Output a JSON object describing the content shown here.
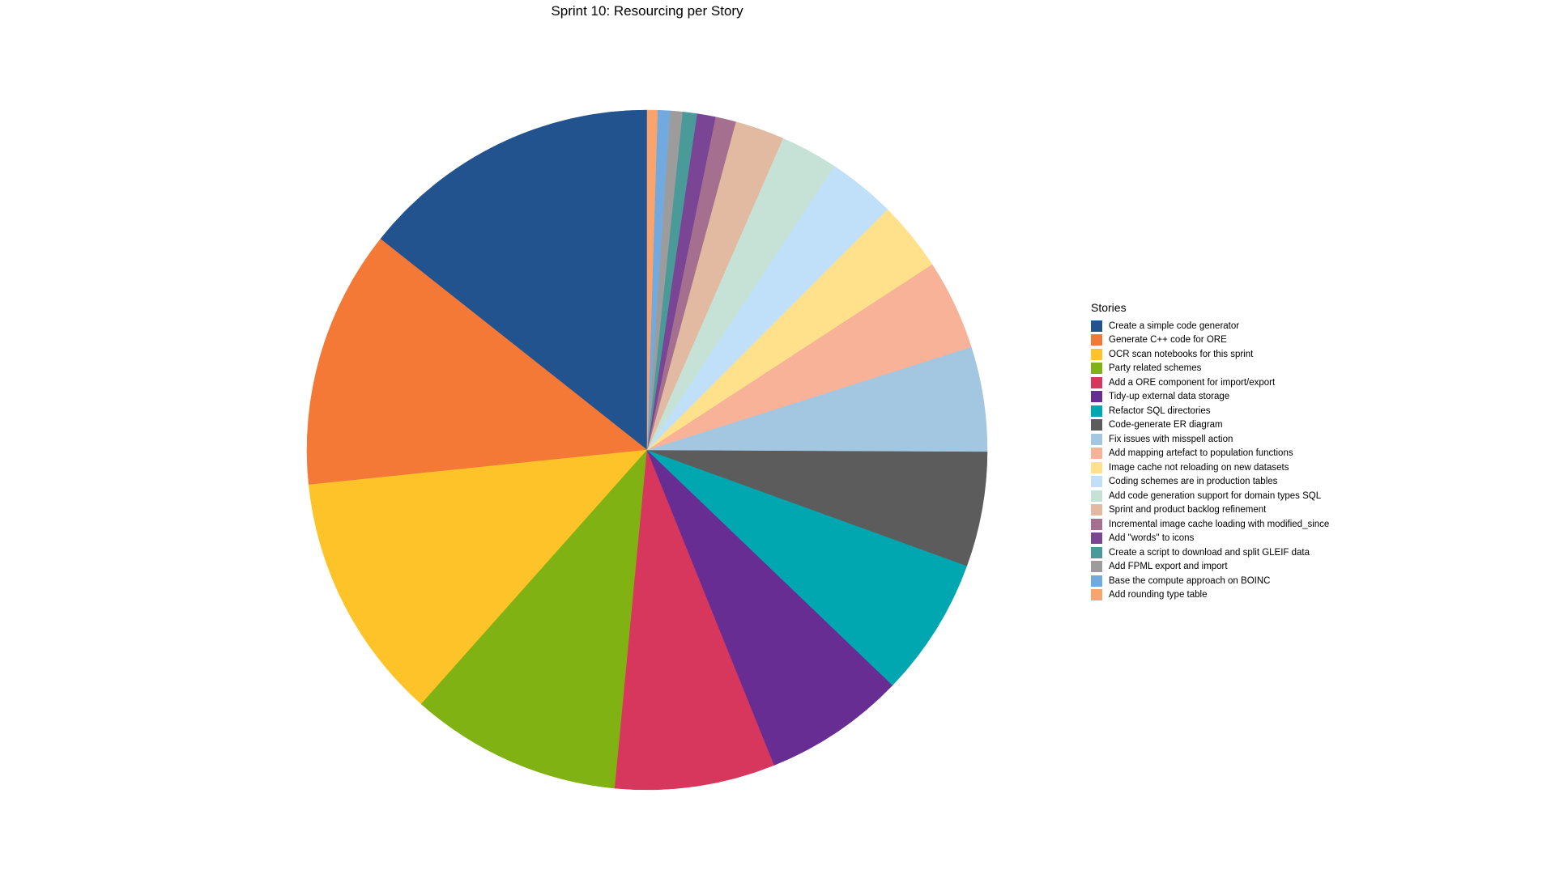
{
  "chart_data": {
    "type": "pie",
    "title": "Sprint 10: Resourcing per Story",
    "legend_title": "Stories",
    "legend_position": "right",
    "slices": [
      {
        "label": "Create a simple code generator",
        "value": 14.7,
        "color": "#23538F"
      },
      {
        "label": "Generate C++ code for ORE",
        "value": 12.6,
        "color": "#F47936"
      },
      {
        "label": "OCR scan notebooks for this sprint",
        "value": 12.1,
        "color": "#FDC328"
      },
      {
        "label": "Party related schemes",
        "value": 10.3,
        "color": "#81B214"
      },
      {
        "label": "Add a ORE component for import/export",
        "value": 7.8,
        "color": "#D8375D"
      },
      {
        "label": "Tidy-up external data storage",
        "value": 6.9,
        "color": "#682D92"
      },
      {
        "label": "Refactor SQL directories",
        "value": 6.8,
        "color": "#00A7B0"
      },
      {
        "label": "Code-generate ER diagram",
        "value": 5.6,
        "color": "#5C5C5C"
      },
      {
        "label": "Fix issues with misspell action",
        "value": 5.1,
        "color": "#A3C7E0"
      },
      {
        "label": "Add mapping artefact to population functions",
        "value": 4.4,
        "color": "#F7B298"
      },
      {
        "label": "Image cache not reloading on new datasets",
        "value": 3.4,
        "color": "#FEE18A"
      },
      {
        "label": "Coding schemes are in production tables",
        "value": 3.3,
        "color": "#C0E0FA"
      },
      {
        "label": "Add code generation support for domain types SQL",
        "value": 2.8,
        "color": "#C6E2D6"
      },
      {
        "label": "Sprint and product backlog refinement",
        "value": 2.4,
        "color": "#E2B9A1"
      },
      {
        "label": "Incremental image cache loading with modified_since",
        "value": 1.0,
        "color": "#A5708F"
      },
      {
        "label": "Add \"words\" to icons",
        "value": 0.9,
        "color": "#7A4595"
      },
      {
        "label": "Create a script to download and split GLEIF data",
        "value": 0.7,
        "color": "#4B9A9A"
      },
      {
        "label": "Add FPML export and import",
        "value": 0.6,
        "color": "#9C9C9C"
      },
      {
        "label": "Base the compute approach on BOINC",
        "value": 0.6,
        "color": "#72AADF"
      },
      {
        "label": "Add rounding type table",
        "value": 0.5,
        "color": "#F9A36D"
      }
    ]
  }
}
